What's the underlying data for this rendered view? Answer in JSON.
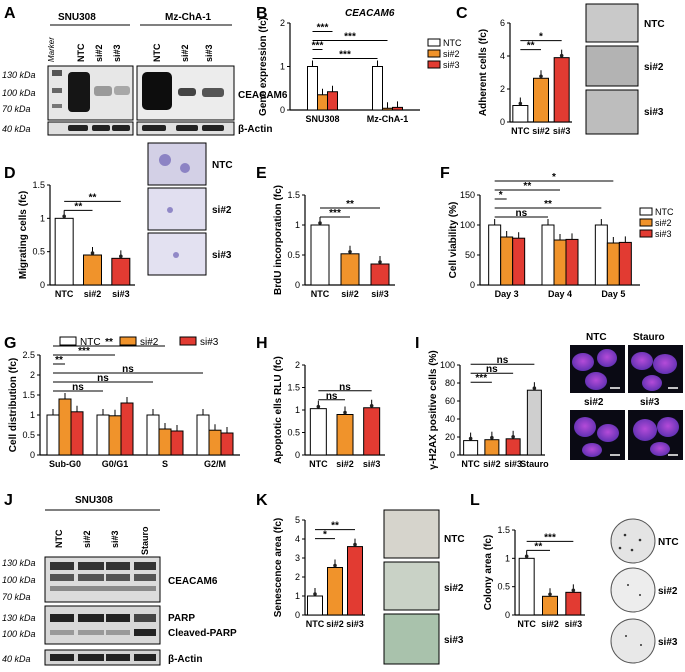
{
  "colors": {
    "ntc": "#ffffff",
    "si2": "#f0932b",
    "si3": "#e23b32",
    "stauro": "#cfcfcf",
    "outline": "#000000"
  },
  "panels": {
    "A": {
      "letter": "A",
      "group1": "SNU308",
      "group2": "Mz-ChA-1",
      "marker": "Marker",
      "lanes1": [
        "NTC",
        "si#2",
        "si#3"
      ],
      "lanes2": [
        "NTC",
        "si#2",
        "si#3"
      ],
      "kda": [
        "130 kDa",
        "100 kDa",
        "70 kDa",
        "40 kDa"
      ],
      "bands": [
        "CEACAM6",
        "β-Actin"
      ]
    },
    "B": {
      "letter": "B",
      "title": "CEACAM6",
      "legend": [
        "NTC",
        "si#2",
        "si#3"
      ]
    },
    "C": {
      "letter": "C",
      "imgs": [
        "NTC",
        "si#2",
        "si#3"
      ]
    },
    "D": {
      "letter": "D",
      "imgs": [
        "NTC",
        "si#2",
        "si#3"
      ]
    },
    "E": {
      "letter": "E"
    },
    "F": {
      "letter": "F",
      "legend": [
        "NTC",
        "si#2",
        "si#3"
      ]
    },
    "G": {
      "letter": "G",
      "legend": [
        "NTC",
        "si#2",
        "si#3"
      ]
    },
    "H": {
      "letter": "H"
    },
    "I": {
      "letter": "I",
      "imgs": [
        "NTC",
        "Stauro",
        "si#2",
        "si#3"
      ]
    },
    "J": {
      "letter": "J",
      "group": "SNU308",
      "lanes": [
        "NTC",
        "si#2",
        "si#3",
        "Stauro"
      ],
      "kda1": [
        "130 kDa",
        "100 kDa",
        "70 kDa"
      ],
      "kda2": [
        "130 kDa",
        "100 kDa",
        "40 kDa"
      ],
      "bands": [
        "CEACAM6",
        "PARP",
        "Cleaved-PARP",
        "β-Actin"
      ]
    },
    "K": {
      "letter": "K",
      "imgs": [
        "NTC",
        "si#2",
        "si#3"
      ]
    },
    "L": {
      "letter": "L",
      "imgs": [
        "NTC",
        "si#2",
        "si#3"
      ]
    }
  },
  "chart_data": [
    {
      "panel": "B",
      "type": "bar",
      "title": "CEACAM6",
      "ylabel": "Gene expression (fc)",
      "ylim": [
        0,
        2
      ],
      "yticks": [
        0,
        1,
        2
      ],
      "categories": [
        "SNU308",
        "Mz-ChA-1"
      ],
      "series": [
        {
          "name": "NTC",
          "values": [
            1.0,
            1.0
          ]
        },
        {
          "name": "si#2",
          "values": [
            0.35,
            0.04
          ]
        },
        {
          "name": "si#3",
          "values": [
            0.42,
            0.06
          ]
        }
      ],
      "significance": [
        "***",
        "***",
        "***",
        "***"
      ]
    },
    {
      "panel": "C",
      "type": "bar",
      "ylabel": "Adherent cells (fc)",
      "ylim": [
        0,
        6
      ],
      "yticks": [
        0,
        2,
        4,
        6
      ],
      "categories": [
        "NTC",
        "si#2",
        "si#3"
      ],
      "values": [
        1.0,
        2.65,
        3.9
      ],
      "significance": [
        "**",
        "*"
      ]
    },
    {
      "panel": "D",
      "type": "bar",
      "ylabel": "Migrating cells (fc)",
      "ylim": [
        0,
        1.5
      ],
      "yticks": [
        0,
        0.5,
        1,
        1.5
      ],
      "categories": [
        "NTC",
        "si#2",
        "si#3"
      ],
      "values": [
        1.0,
        0.45,
        0.4
      ],
      "significance": [
        "**",
        "**"
      ]
    },
    {
      "panel": "E",
      "type": "bar",
      "ylabel": "BrdU incorporation (fc)",
      "ylim": [
        0,
        1.5
      ],
      "yticks": [
        0,
        0.5,
        1,
        1.5
      ],
      "categories": [
        "NTC",
        "si#2",
        "si#3"
      ],
      "values": [
        1.0,
        0.52,
        0.35
      ],
      "significance": [
        "***",
        "**"
      ]
    },
    {
      "panel": "F",
      "type": "bar",
      "ylabel": "Cell viability (%)",
      "ylim": [
        0,
        150
      ],
      "yticks": [
        0,
        50,
        100,
        150
      ],
      "categories": [
        "Day 3",
        "Day 4",
        "Day 5"
      ],
      "series": [
        {
          "name": "NTC",
          "values": [
            100,
            100,
            100
          ]
        },
        {
          "name": "si#2",
          "values": [
            80,
            75,
            70
          ]
        },
        {
          "name": "si#3",
          "values": [
            78,
            76,
            71
          ]
        }
      ],
      "significance": [
        "ns",
        "**",
        "*",
        "**",
        "*",
        "**"
      ]
    },
    {
      "panel": "G",
      "type": "bar",
      "ylabel": "Cell distribution (fc)",
      "ylim": [
        0,
        2.5
      ],
      "yticks": [
        0,
        0.5,
        1,
        1.5,
        2,
        2.5
      ],
      "categories": [
        "Sub-G0",
        "G0/G1",
        "S",
        "G2/M"
      ],
      "series": [
        {
          "name": "NTC",
          "values": [
            1.0,
            1.0,
            1.0,
            1.0
          ]
        },
        {
          "name": "si#2",
          "values": [
            1.4,
            0.98,
            0.65,
            0.62
          ]
        },
        {
          "name": "si#3",
          "values": [
            1.08,
            1.3,
            0.6,
            0.55
          ]
        }
      ],
      "significance": [
        "ns",
        "ns",
        "ns",
        "**",
        "***",
        "**",
        "*",
        "*"
      ]
    },
    {
      "panel": "H",
      "type": "bar",
      "ylabel": "Apoptotic ells RLU (fc)",
      "ylim": [
        0,
        2
      ],
      "yticks": [
        0,
        0.5,
        1,
        1.5,
        2
      ],
      "categories": [
        "NTC",
        "si#2",
        "si#3"
      ],
      "values": [
        1.03,
        0.9,
        1.05
      ],
      "significance": [
        "ns",
        "ns"
      ]
    },
    {
      "panel": "I",
      "type": "bar",
      "ylabel": "γ-H2AX positive cells (%)",
      "ylim": [
        0,
        100
      ],
      "yticks": [
        0,
        20,
        40,
        60,
        80,
        100
      ],
      "categories": [
        "NTC",
        "si#2",
        "si#3",
        "Stauro"
      ],
      "values": [
        16,
        17,
        18,
        72
      ],
      "significance": [
        "***",
        "ns",
        "ns"
      ]
    },
    {
      "panel": "K",
      "type": "bar",
      "ylabel": "Senescence area (fc)",
      "ylim": [
        0,
        5
      ],
      "yticks": [
        0,
        1,
        2,
        3,
        4,
        5
      ],
      "categories": [
        "NTC",
        "si#2",
        "si#3"
      ],
      "values": [
        1.0,
        2.5,
        3.6
      ],
      "significance": [
        "*",
        "**"
      ]
    },
    {
      "panel": "L",
      "type": "bar",
      "ylabel": "Colony area (fc)",
      "ylim": [
        0,
        1.5
      ],
      "yticks": [
        0,
        0.5,
        1,
        1.5
      ],
      "categories": [
        "NTC",
        "si#2",
        "si#3"
      ],
      "values": [
        1.0,
        0.33,
        0.4
      ],
      "significance": [
        "**",
        "***"
      ]
    }
  ]
}
